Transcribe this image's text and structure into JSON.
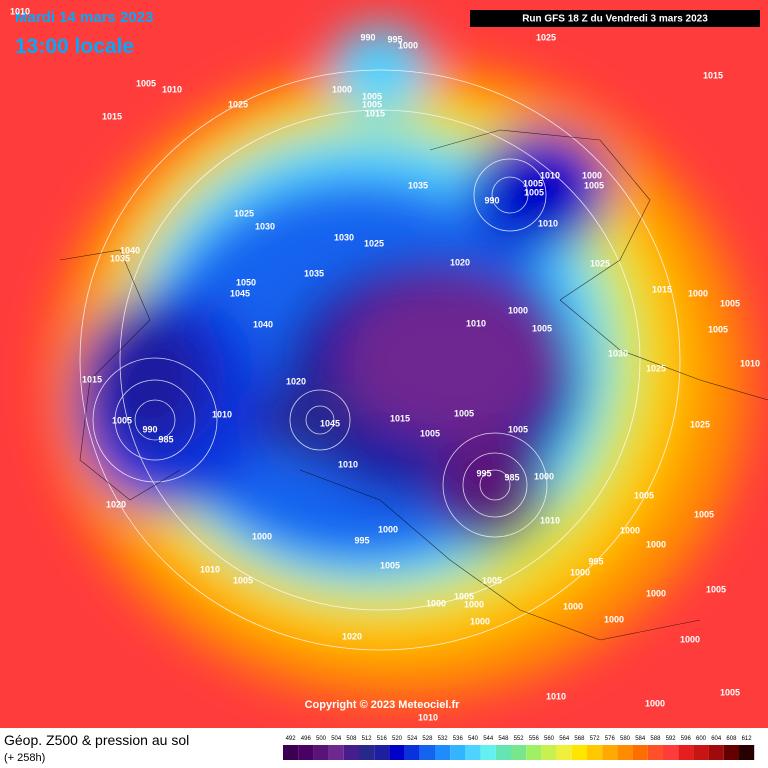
{
  "header": {
    "date": "Mardi 14 mars 2023",
    "time": "13:00 locale",
    "run": "Run GFS 18 Z du Vendredi 3 mars 2023"
  },
  "copyright": "Copyright © 2023 Meteociel.fr",
  "footer": {
    "title": "Géop. Z500 & pression au sol",
    "subtitle": "(+ 258h)"
  },
  "colorbar": {
    "values": [
      492,
      496,
      500,
      504,
      508,
      512,
      516,
      520,
      524,
      528,
      532,
      536,
      540,
      544,
      548,
      552,
      556,
      560,
      564,
      568,
      572,
      576,
      580,
      584,
      588,
      592,
      596,
      600,
      604,
      608,
      612
    ],
    "colors": [
      "#3c0050",
      "#4b0064",
      "#5a1478",
      "#6e2890",
      "#461e8c",
      "#28288c",
      "#1e1ea0",
      "#0000c8",
      "#0a32dc",
      "#1464f0",
      "#1e8cff",
      "#32b4ff",
      "#50d2ff",
      "#64f0f0",
      "#64e6b4",
      "#78e68c",
      "#a0f064",
      "#c8f050",
      "#f0f03c",
      "#ffe600",
      "#ffc800",
      "#ffaa00",
      "#ff8c00",
      "#ff6e00",
      "#ff5028",
      "#ff3c3c",
      "#e61e1e",
      "#c81414",
      "#a00a0a",
      "#640000",
      "#280000"
    ]
  },
  "isobar_labels": [
    1010,
    990,
    995,
    1000,
    1025,
    1015,
    1005,
    1010,
    1025,
    1015,
    1000,
    1005,
    1005,
    1015,
    1035,
    1010,
    1000,
    1005,
    1005,
    990,
    1005,
    1025,
    1030,
    1030,
    1025,
    1010,
    1020,
    1025,
    1015,
    1000,
    1040,
    1035,
    1035,
    1050,
    1045,
    1040,
    1000,
    1010,
    1005,
    1030,
    1015,
    1020,
    1025,
    1005,
    990,
    985,
    1010,
    1045,
    1015,
    1005,
    1005,
    1005,
    995,
    985,
    1000,
    1010,
    1020,
    1000,
    995,
    1000,
    1010,
    1010,
    1005,
    1005,
    1005,
    1000,
    995,
    1000,
    1000,
    1000,
    1005,
    1000,
    1000,
    1000,
    1000,
    1020,
    1000,
    1010,
    1000,
    1005,
    1010,
    1005,
    1005,
    1010,
    1025,
    1005,
    1005,
    1000,
    1005
  ]
}
